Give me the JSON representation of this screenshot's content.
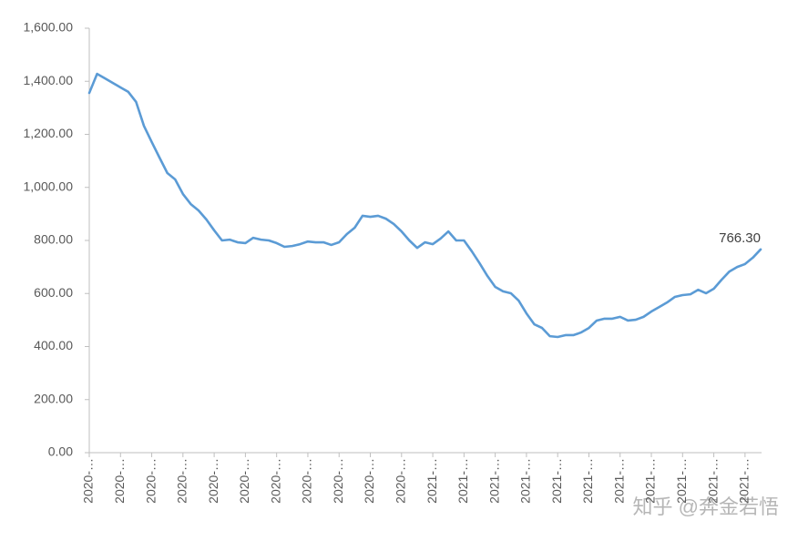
{
  "chart_data": {
    "type": "line",
    "categories": [
      "2020-…",
      null,
      null,
      null,
      "2020-…",
      null,
      null,
      null,
      "2020-…",
      null,
      null,
      null,
      "2020-…",
      null,
      null,
      null,
      "2020-…",
      null,
      null,
      null,
      "2020-…",
      null,
      null,
      null,
      "2020-…",
      null,
      null,
      null,
      "2020-…",
      null,
      null,
      null,
      "2020-…",
      null,
      null,
      null,
      "2020-…",
      null,
      null,
      null,
      "2020-…",
      null,
      null,
      null,
      "2021-…",
      null,
      null,
      null,
      "2021-…",
      null,
      null,
      null,
      "2021-…",
      null,
      null,
      null,
      "2021-…",
      null,
      null,
      null,
      "2021-…",
      null,
      null,
      null,
      "2021-…",
      null,
      null,
      null,
      "2021-…",
      null,
      null,
      null,
      "2021-…",
      null,
      null,
      null,
      "2021-…",
      null,
      null,
      null,
      "2021-…",
      null,
      null,
      null,
      "2021-…",
      null,
      null
    ],
    "series": [
      {
        "color": "#5b9bd5",
        "values": [
          1356,
          1428,
          1411,
          1394,
          1377,
          1360,
          1322,
          1232,
          1171,
          1112,
          1054,
          1030,
          975,
          937,
          913,
          879,
          838,
          800,
          803,
          793,
          790,
          810,
          803,
          800,
          790,
          776,
          779,
          786,
          796,
          793,
          793,
          783,
          793,
          824,
          848,
          893,
          889,
          893,
          882,
          862,
          834,
          800,
          772,
          793,
          786,
          807,
          834,
          800,
          800,
          759,
          714,
          666,
          625,
          608,
          601,
          573,
          525,
          484,
          470,
          439,
          436,
          443,
          443,
          453,
          470,
          498,
          505,
          505,
          512,
          498,
          501,
          512,
          532,
          549,
          566,
          587,
          594,
          597,
          614,
          601,
          618,
          652,
          683,
          700,
          711,
          735,
          766.3
        ],
        "value_labels": [
          null,
          null,
          null,
          null,
          null,
          null,
          null,
          null,
          null,
          null,
          null,
          null,
          null,
          null,
          null,
          null,
          null,
          null,
          null,
          null,
          null,
          null,
          null,
          null,
          null,
          null,
          null,
          null,
          null,
          null,
          null,
          null,
          null,
          null,
          null,
          null,
          null,
          null,
          null,
          null,
          null,
          null,
          null,
          null,
          null,
          null,
          null,
          null,
          null,
          null,
          null,
          null,
          null,
          null,
          null,
          null,
          null,
          null,
          null,
          null,
          null,
          null,
          null,
          null,
          null,
          null,
          null,
          null,
          null,
          null,
          null,
          null,
          null,
          null,
          null,
          null,
          null,
          null,
          null,
          null,
          null,
          null,
          null,
          null,
          null,
          null,
          "766.30"
        ]
      }
    ],
    "ylim": [
      0,
      1600
    ],
    "yticks": [
      {
        "value": 0,
        "label": "0.00"
      },
      {
        "value": 200,
        "label": "200.00"
      },
      {
        "value": 400,
        "label": "400.00"
      },
      {
        "value": 600,
        "label": "600.00"
      },
      {
        "value": 800,
        "label": "800.00"
      },
      {
        "value": 1000,
        "label": "1,000.00"
      },
      {
        "value": 1200,
        "label": "1,200.00"
      },
      {
        "value": 1400,
        "label": "1,400.00"
      },
      {
        "value": 1600,
        "label": "1,600.00"
      }
    ],
    "grid": false,
    "watermark": "知乎 @奔金若悟"
  }
}
